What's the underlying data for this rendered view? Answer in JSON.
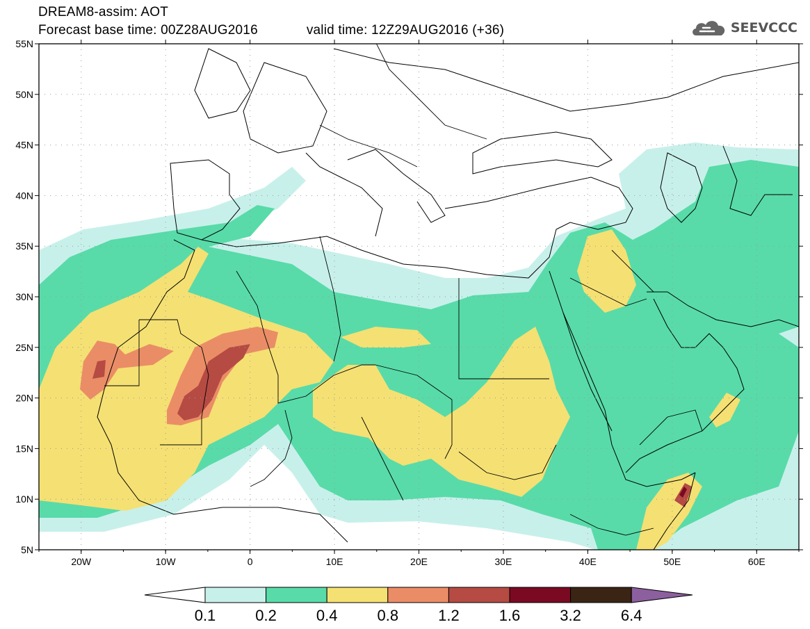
{
  "header": {
    "title": "DREAM8-assim: AOT",
    "base_time": "Forecast base time: 00Z28AUG2016",
    "valid_time": "valid time: 12Z29AUG2016 (+36)"
  },
  "logo": {
    "text": "SEEVCCC",
    "icon": "cloud-icon"
  },
  "map": {
    "region": {
      "lon": [
        -25,
        65
      ],
      "lat": [
        5,
        55
      ]
    },
    "lat_labels": [
      "55N",
      "50N",
      "45N",
      "40N",
      "35N",
      "30N",
      "25N",
      "20N",
      "15N",
      "10N",
      "5N"
    ],
    "lon_labels": [
      "20W",
      "10W",
      "0",
      "10E",
      "20E",
      "30E",
      "40E",
      "50E",
      "60E"
    ]
  },
  "colorbar": {
    "levels": [
      "0.1",
      "0.2",
      "0.4",
      "0.8",
      "1.2",
      "1.6",
      "3.2",
      "6.4"
    ],
    "colors": [
      "#ffffff",
      "#c8f0ea",
      "#58dba9",
      "#f5e073",
      "#ea8d66",
      "#b54b43",
      "#7a0a22",
      "#3a2515",
      "#8c5f9e"
    ]
  }
}
